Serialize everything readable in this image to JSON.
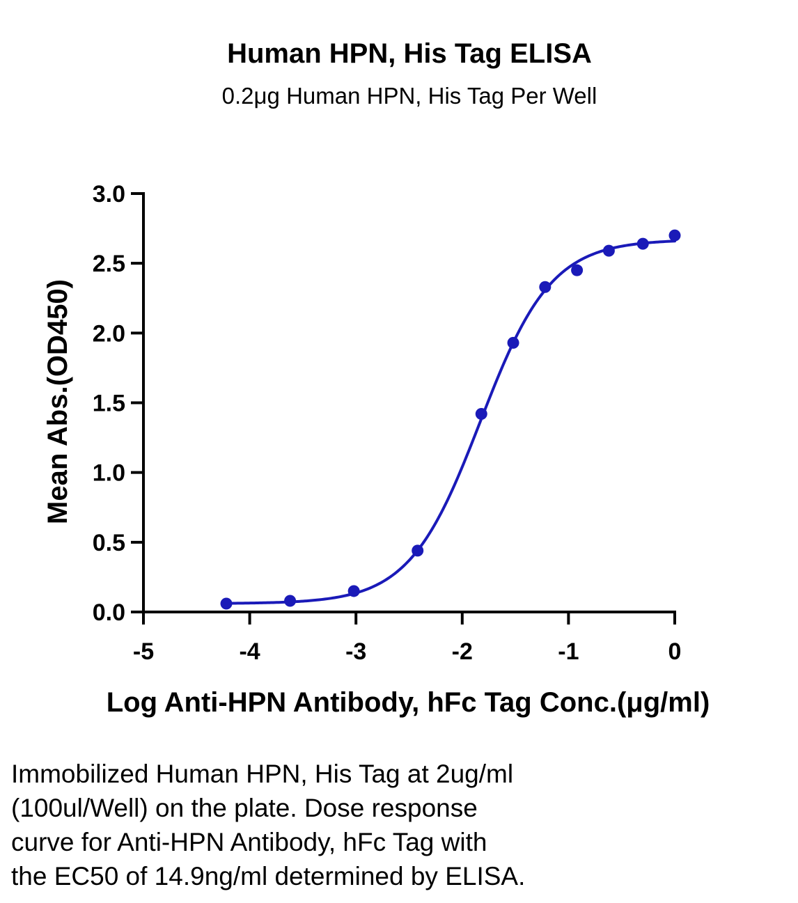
{
  "chart_data": {
    "type": "scatter",
    "title": "Human HPN, His Tag ELISA",
    "subtitle": "0.2μg Human HPN, His Tag Per Well",
    "xlabel": "Log Anti-HPN Antibody, hFc Tag Conc.(μg/ml)",
    "ylabel": "Mean Abs.(OD450)",
    "xlim": [
      -5,
      0
    ],
    "ylim": [
      0,
      3.0
    ],
    "x_ticks": [
      -5,
      -4,
      -3,
      -2,
      -1,
      0
    ],
    "x_tick_labels": [
      "-5",
      "-4",
      "-3",
      "-2",
      "-1",
      "0"
    ],
    "y_ticks": [
      0,
      0.5,
      1.0,
      1.5,
      2.0,
      2.5,
      3.0
    ],
    "y_tick_labels": [
      "0.0",
      "0.5",
      "1.0",
      "1.5",
      "2.0",
      "2.5",
      "3.0"
    ],
    "grid": false,
    "colors": {
      "series": "#1a1ab8"
    },
    "points": {
      "x": [
        -4.22,
        -3.62,
        -3.02,
        -2.42,
        -1.82,
        -1.52,
        -1.22,
        -0.92,
        -0.62,
        -0.3,
        0.0
      ],
      "y": [
        0.06,
        0.08,
        0.15,
        0.44,
        1.42,
        1.93,
        2.33,
        2.45,
        2.59,
        2.64,
        2.7
      ]
    },
    "fit_curve": {
      "model": "4PL",
      "bottom": 0.06,
      "top": 2.67,
      "log_ec50": -1.83,
      "hill_slope": 1.3
    }
  },
  "caption": {
    "lines": [
      "Immobilized Human HPN, His Tag at 2ug/ml",
      "(100ul/Well) on the plate. Dose response",
      "curve for Anti-HPN Antibody, hFc Tag with",
      "the EC50 of 14.9ng/ml determined by ELISA."
    ]
  }
}
